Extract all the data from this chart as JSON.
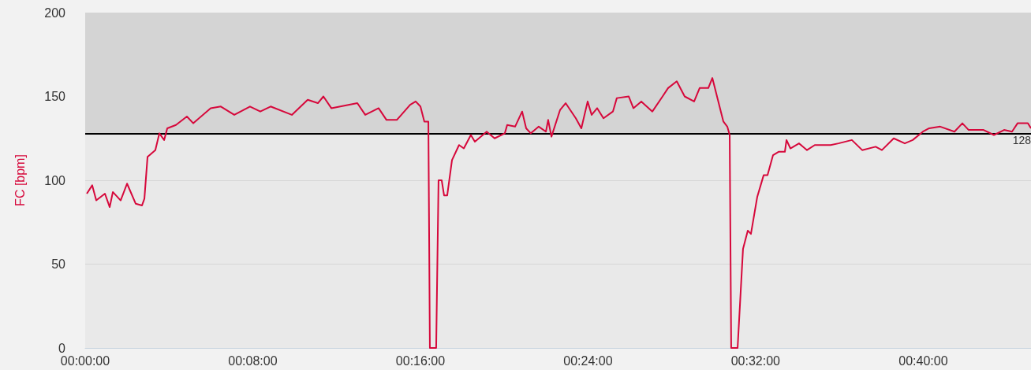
{
  "chart_data": {
    "type": "line",
    "ylabel": "FC [bpm]",
    "xlim": [
      0,
      0.7524
    ],
    "ylim": [
      0,
      200
    ],
    "xticks": [
      {
        "value": 0,
        "label": "00:00:00"
      },
      {
        "value": 0.1333,
        "label": "00:08:00"
      },
      {
        "value": 0.2667,
        "label": "00:16:00"
      },
      {
        "value": 0.4,
        "label": "00:24:00"
      },
      {
        "value": 0.5333,
        "label": "00:32:00"
      },
      {
        "value": 0.6667,
        "label": "00:40:00"
      }
    ],
    "yticks": [
      0,
      50,
      100,
      150,
      200
    ],
    "grid": "y",
    "marker": "none",
    "line_style": "solid",
    "ref_lines": [
      {
        "axis": "y",
        "value": 128,
        "label": "128",
        "color": "#000000"
      }
    ],
    "bands": [
      {
        "axis": "y",
        "from": 128,
        "to": 200,
        "color": "#d4d4d4"
      }
    ],
    "series": [
      {
        "color": "#d6083b",
        "x": [
          0.0013,
          0.0056,
          0.0088,
          0.0157,
          0.0195,
          0.022,
          0.0282,
          0.0333,
          0.0402,
          0.0452,
          0.0471,
          0.0496,
          0.0558,
          0.059,
          0.0628,
          0.0653,
          0.0722,
          0.0809,
          0.086,
          0.0998,
          0.1079,
          0.1186,
          0.1311,
          0.1393,
          0.1475,
          0.1644,
          0.177,
          0.1851,
          0.1895,
          0.1958,
          0.2165,
          0.2228,
          0.2334,
          0.2397,
          0.2479,
          0.2585,
          0.2629,
          0.2667,
          0.2698,
          0.273,
          0.2742,
          0.2792,
          0.2811,
          0.2836,
          0.2855,
          0.288,
          0.2918,
          0.2974,
          0.3012,
          0.3068,
          0.31,
          0.3194,
          0.3257,
          0.3338,
          0.3357,
          0.342,
          0.3476,
          0.3508,
          0.3545,
          0.3608,
          0.3665,
          0.3683,
          0.3709,
          0.3778,
          0.3822,
          0.3903,
          0.3947,
          0.3997,
          0.4029,
          0.4073,
          0.4123,
          0.4198,
          0.4229,
          0.4324,
          0.4361,
          0.4424,
          0.4512,
          0.4593,
          0.4637,
          0.4706,
          0.4769,
          0.4844,
          0.4888,
          0.4957,
          0.4989,
          0.5033,
          0.5077,
          0.5108,
          0.5127,
          0.5139,
          0.519,
          0.5233,
          0.5271,
          0.5296,
          0.5346,
          0.5397,
          0.5428,
          0.5472,
          0.5516,
          0.5566,
          0.5579,
          0.561,
          0.5679,
          0.5742,
          0.5804,
          0.593,
          0.5993,
          0.6099,
          0.6181,
          0.6288,
          0.6338,
          0.6432,
          0.652,
          0.6583,
          0.6664,
          0.6714,
          0.6802,
          0.6915,
          0.6978,
          0.7028,
          0.7147,
          0.7229,
          0.731,
          0.7373,
          0.7417,
          0.7499,
          0.7524
        ],
        "values": [
          92,
          97,
          88,
          92,
          84,
          93,
          88,
          98,
          86,
          85,
          89,
          114,
          118,
          128,
          124,
          131,
          133,
          138,
          134,
          143,
          144,
          139,
          144,
          141,
          144,
          139,
          148,
          146,
          150,
          143,
          146,
          139,
          143,
          136,
          136,
          145,
          147,
          144,
          135,
          135,
          0,
          0,
          100,
          100,
          91,
          91,
          112,
          121,
          119,
          127,
          123,
          129,
          125,
          128,
          133,
          132,
          141,
          131,
          128,
          132,
          129,
          136,
          126,
          142,
          146,
          137,
          131,
          147,
          139,
          143,
          137,
          141,
          149,
          150,
          143,
          147,
          141,
          150,
          155,
          159,
          150,
          147,
          155,
          155,
          161,
          148,
          135,
          132,
          127,
          0,
          0,
          59,
          70,
          68,
          90,
          103,
          103,
          115,
          117,
          117,
          124,
          119,
          122,
          118,
          121,
          121,
          122,
          124,
          118,
          120,
          118,
          125,
          122,
          124,
          129,
          131,
          132,
          129,
          134,
          130,
          130,
          127,
          130,
          129,
          134,
          134,
          131
        ]
      }
    ]
  }
}
